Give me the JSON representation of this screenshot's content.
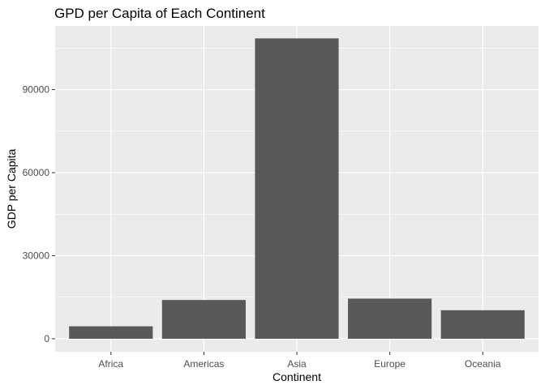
{
  "chart_data": {
    "type": "bar",
    "title": "GPD per Capita of Each Continent",
    "xlabel": "Continent",
    "ylabel": "GDP per Capita",
    "categories": [
      "Africa",
      "Americas",
      "Asia",
      "Europe",
      "Oceania"
    ],
    "values": [
      4500,
      14000,
      108500,
      14500,
      10300
    ],
    "ylim": [
      0,
      113000
    ],
    "yticks": [
      0,
      30000,
      60000,
      90000
    ],
    "ytick_labels": [
      "0",
      "30000",
      "60000",
      "90000"
    ],
    "grid": true,
    "legend": "none",
    "colors": {
      "bar": "#595959",
      "panel": "#ebebeb",
      "grid_major": "#ffffff",
      "tick": "#333333"
    }
  }
}
